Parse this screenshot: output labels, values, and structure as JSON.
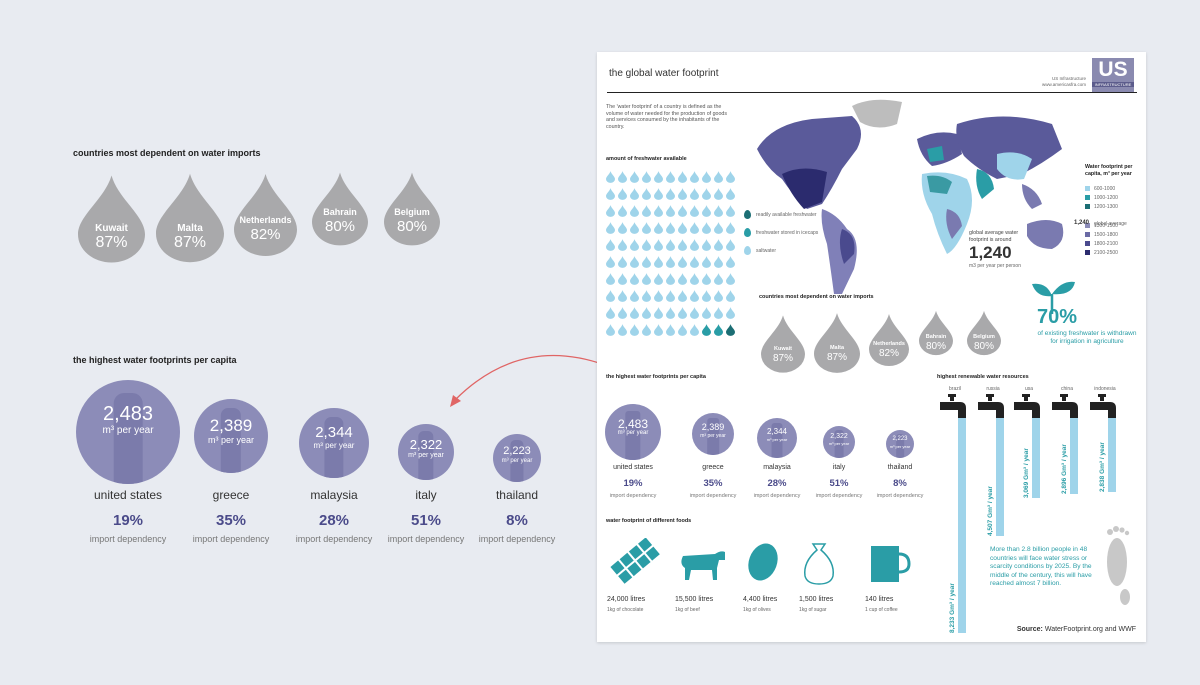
{
  "left": {
    "imports_title": "countries most dependent on water imports",
    "imports": [
      {
        "name": "Kuwait",
        "pct": "87%"
      },
      {
        "name": "Malta",
        "pct": "87%"
      },
      {
        "name": "Netherlands",
        "pct": "82%"
      },
      {
        "name": "Bahrain",
        "pct": "80%"
      },
      {
        "name": "Belgium",
        "pct": "80%"
      }
    ],
    "footprint_title": "the highest water footprints per capita",
    "footprints": [
      {
        "value": "2,483",
        "unit": "m³ per year",
        "country": "united states",
        "pct": "19%",
        "dep": "import dependency"
      },
      {
        "value": "2,389",
        "unit": "m³ per year",
        "country": "greece",
        "pct": "35%",
        "dep": "import dependency"
      },
      {
        "value": "2,344",
        "unit": "m³ per year",
        "country": "malaysia",
        "pct": "28%",
        "dep": "import dependency"
      },
      {
        "value": "2,322",
        "unit": "m³ per year",
        "country": "italy",
        "pct": "51%",
        "dep": "import dependency"
      },
      {
        "value": "2,223",
        "unit": "m³ per year",
        "country": "thailand",
        "pct": "8%",
        "dep": "import dependency"
      }
    ]
  },
  "poster": {
    "title": "the global water footprint",
    "org": "US Infrastructure",
    "url": "www.americasfra.com",
    "logo_top": "US",
    "logo_bottom": "INFRASTRUCTURE",
    "intro": "The 'water footprint' of a country is defined as the volume of water needed for the production of goods and services consumed by the inhabitants of the country.",
    "freshwater_title": "amount of freshwater available",
    "fw_legend": [
      "readily available freshwater",
      "freshwater stored in icecaps",
      "saltwater"
    ],
    "map_legend_title": "Water footprint per capita, m³ per year",
    "map_legend": [
      "600-1000",
      "1000-1200",
      "1200-1300",
      "1300-1500",
      "1500-1800",
      "1800-2100",
      "2100-2500"
    ],
    "global_avg_label": "global average",
    "global_avg_value": "1,240",
    "avg_text": "global average water footprint is around",
    "avg_value": "1,240",
    "avg_unit": "m3 per year per person",
    "imports_title": "countries most dependent on water imports",
    "irrigation_pct": "70%",
    "irrigation_text": "of existing freshwater is withdrawn for irrigation in agriculture",
    "footprint_title": "the highest water footprints per capita",
    "renew_title": "highest renewable water resources",
    "renew": [
      {
        "country": "brazil",
        "value": "8,233 Gm³ / year"
      },
      {
        "country": "russia",
        "value": "4,507 Gm³ / year"
      },
      {
        "country": "usa",
        "value": "3,069 Gm³ / year"
      },
      {
        "country": "china",
        "value": "2,896 Gm³ / year"
      },
      {
        "country": "indonesia",
        "value": "2,838 Gm³ / year"
      }
    ],
    "foods_title": "water footprint of different foods",
    "foods": [
      {
        "litres": "24,000 litres",
        "item": "1kg of chocolate"
      },
      {
        "litres": "15,500 litres",
        "item": "1kg of beef"
      },
      {
        "litres": "4,400 litres",
        "item": "1kg of olives"
      },
      {
        "litres": "1,500 litres",
        "item": "1kg of sugar"
      },
      {
        "litres": "140 litres",
        "item": "1 cup of coffee"
      }
    ],
    "scarcity_text": "More than 2.8 billion people in 48 countries will face water stress or scarcity conditions by 2025. By the middle of the century, this will have reached almost 7 billion.",
    "source_label": "Source:",
    "source_text": "WaterFootprint.org and WWF"
  },
  "colors": {
    "drop_grey": "#a9a9ab",
    "circle_purple": "#8c8cb8",
    "water_blue": "#9fd4ea",
    "teal": "#2a9da6",
    "arrow_red": "#e06565"
  }
}
